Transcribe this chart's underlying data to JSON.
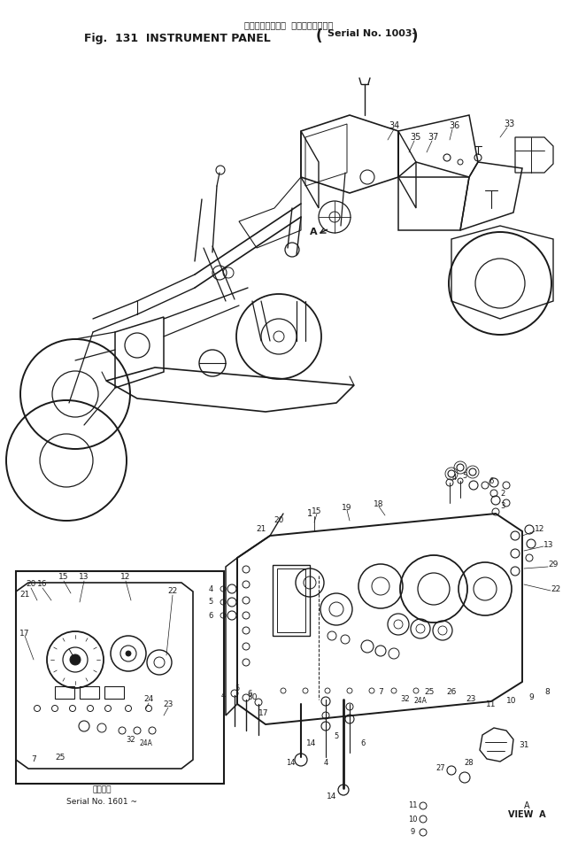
{
  "title_line1": "インスツルメント  パネル（適用号機",
  "title_line2_a": "Fig.  131  INSTRUMENT PANEL",
  "title_line2_b": "Serial No. 1003-",
  "subtitle_left_line1": "適用号機",
  "subtitle_left_line2": "Serial No. 1601 ~",
  "subtitle_right_line1": "A",
  "subtitle_right_line2": "VIEW  A",
  "bg_color": "#ffffff",
  "line_color": "#1a1a1a",
  "fig_width": 6.53,
  "fig_height": 9.52,
  "dpi": 100
}
